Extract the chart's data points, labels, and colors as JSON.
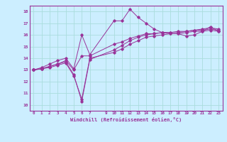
{
  "xlabel": "Windchill (Refroidissement éolien,°C)",
  "bg_color": "#cceeff",
  "grid_color": "#aadddd",
  "line_color": "#993399",
  "spine_color": "#993399",
  "xlim": [
    -0.5,
    23.5
  ],
  "ylim": [
    9.5,
    18.5
  ],
  "xticks": [
    0,
    1,
    2,
    3,
    4,
    5,
    6,
    7,
    9,
    10,
    11,
    12,
    13,
    14,
    15,
    16,
    17,
    18,
    19,
    20,
    21,
    22,
    23
  ],
  "yticks": [
    10,
    11,
    12,
    13,
    14,
    15,
    16,
    17,
    18
  ],
  "line1_x": [
    0,
    1,
    2,
    3,
    4,
    5,
    6,
    7,
    10,
    11,
    12,
    13,
    14,
    15,
    16,
    17,
    18,
    19,
    20,
    21,
    22,
    23
  ],
  "line1_y": [
    13.0,
    13.2,
    13.5,
    13.8,
    14.0,
    13.1,
    16.0,
    14.3,
    17.2,
    17.2,
    18.2,
    17.5,
    17.0,
    16.5,
    16.2,
    16.1,
    16.1,
    15.9,
    16.0,
    16.3,
    16.7,
    16.3
  ],
  "line2_x": [
    0,
    1,
    2,
    3,
    4,
    5,
    6,
    7,
    10,
    11,
    12,
    13,
    14,
    15,
    16,
    17,
    18,
    19,
    20,
    21,
    22,
    23
  ],
  "line2_y": [
    13.0,
    13.1,
    13.3,
    13.5,
    13.7,
    12.6,
    10.3,
    13.9,
    14.7,
    15.1,
    15.5,
    15.8,
    16.0,
    16.1,
    16.2,
    16.2,
    16.3,
    16.3,
    16.4,
    16.4,
    16.5,
    16.4
  ],
  "line3_x": [
    0,
    1,
    2,
    3,
    4,
    5,
    6,
    7,
    10,
    11,
    12,
    13,
    14,
    15,
    16,
    17,
    18,
    19,
    20,
    21,
    22,
    23
  ],
  "line3_y": [
    13.0,
    13.1,
    13.3,
    13.5,
    13.8,
    13.0,
    14.2,
    14.2,
    15.2,
    15.4,
    15.7,
    15.9,
    16.1,
    16.1,
    16.2,
    16.2,
    16.2,
    16.3,
    16.4,
    16.5,
    16.6,
    16.5
  ],
  "line4_x": [
    0,
    1,
    2,
    3,
    4,
    5,
    6,
    7,
    10,
    11,
    12,
    13,
    14,
    15,
    16,
    17,
    18,
    19,
    20,
    21,
    22,
    23
  ],
  "line4_y": [
    13.0,
    13.1,
    13.2,
    13.4,
    13.6,
    12.5,
    10.5,
    14.0,
    14.5,
    14.8,
    15.2,
    15.5,
    15.8,
    15.9,
    16.0,
    16.1,
    16.1,
    16.2,
    16.3,
    16.3,
    16.4,
    16.3
  ]
}
